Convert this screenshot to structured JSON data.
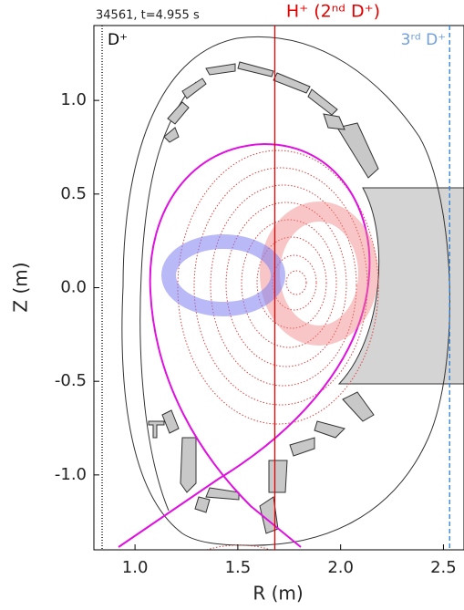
{
  "chart_data": {
    "type": "resonance-map",
    "title": "34561, t=4.955 s",
    "xlabel": "R (m)",
    "ylabel": "Z (m)",
    "xlim": [
      0.8,
      2.6
    ],
    "ylim": [
      -1.4,
      1.4
    ],
    "xticks": [
      {
        "value": 1,
        "label": "1.0"
      },
      1.5,
      {
        "value": 2,
        "label": "2.0"
      },
      2.5
    ],
    "yticks": [
      {
        "value": 1,
        "label": "1.0"
      },
      0.5,
      {
        "value": 0,
        "label": "0.0"
      },
      -0.5,
      {
        "value": -1,
        "label": "-1.0"
      }
    ],
    "resonances": [
      {
        "name": "D⁺",
        "x": 0.84,
        "color": "#000000",
        "style": "dotted"
      },
      {
        "name": "H⁺ (2ⁿᵈ D⁺)",
        "x": 1.68,
        "color": "#e00000",
        "style": "solid"
      },
      {
        "name": "3ʳᵈ D⁺",
        "x": 2.53,
        "color": "#2a7fd4",
        "style": "dashed"
      }
    ]
  }
}
